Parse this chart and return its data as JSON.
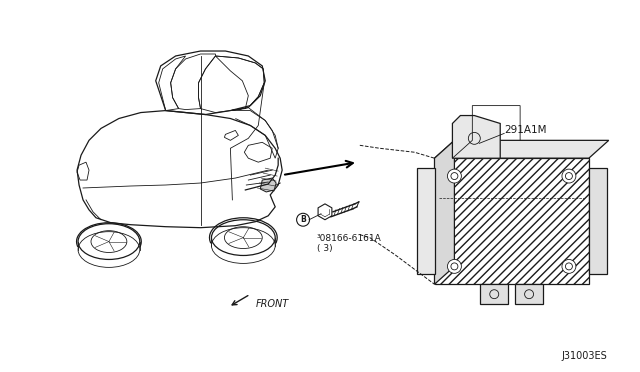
{
  "background_color": "#ffffff",
  "fig_width": 6.4,
  "fig_height": 3.72,
  "dpi": 100,
  "part_label_1": "291A1M",
  "part_label_2": "³08166-6161A\n( 3)",
  "front_label": "FRONT",
  "diagram_id": "J31003ES",
  "line_color": "#1a1a1a",
  "text_color": "#1a1a1a",
  "car_color": "#222222",
  "module_color": "#222222"
}
